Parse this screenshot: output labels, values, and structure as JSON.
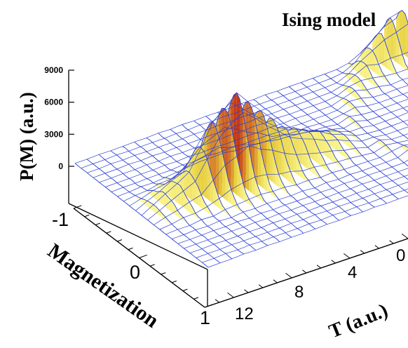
{
  "chart_data": {
    "type": "surface",
    "title": "Ising model",
    "zlabel": "P(M) (a.u.)",
    "xlabel": "Magnetization",
    "ylabel": "T (a.u.)",
    "z_ticks": [
      "0",
      "3000",
      "6000",
      "9000"
    ],
    "z_tick_values": [
      0,
      3000,
      6000,
      9000
    ],
    "magnetization_ticks": [
      "-1",
      "0",
      "1"
    ],
    "temperature_ticks": [
      "0",
      "4",
      "8",
      "12"
    ],
    "magnetization_range": [
      -1,
      1
    ],
    "temperature_range": [
      0,
      14
    ],
    "zlim": [
      0,
      9000
    ],
    "series": [
      {
        "T": 0.5,
        "peak_M": 0.9,
        "peak_P": 4200
      },
      {
        "T": 1.0,
        "peak_M": 0.9,
        "peak_P": 3800
      },
      {
        "T": 2.0,
        "peak_M": 0.85,
        "peak_P": 2000
      },
      {
        "T": 3.0,
        "peak_M": 0.7,
        "peak_P": 900
      },
      {
        "T": 4.0,
        "peak_M": 0.45,
        "peak_P": 500
      },
      {
        "T": 5.0,
        "peak_M": 0.0,
        "peak_P": 300
      },
      {
        "T": 6.0,
        "peak_M": 0.0,
        "peak_P": 1300
      },
      {
        "T": 7.0,
        "peak_M": 0.0,
        "peak_P": 2400
      },
      {
        "T": 8.0,
        "peak_M": 0.0,
        "peak_P": 3600
      },
      {
        "T": 9.0,
        "peak_M": 0.0,
        "peak_P": 6000
      },
      {
        "T": 10.0,
        "peak_M": 0.0,
        "peak_P": 8500
      },
      {
        "T": 11.0,
        "peak_M": 0.0,
        "peak_P": 6500
      },
      {
        "T": 12.0,
        "peak_M": 0.0,
        "peak_P": 2500
      }
    ],
    "colors": {
      "mesh": "#2a3fd6",
      "low": "#ffffa0",
      "mid": "#e8d040",
      "high": "#c02010"
    }
  }
}
